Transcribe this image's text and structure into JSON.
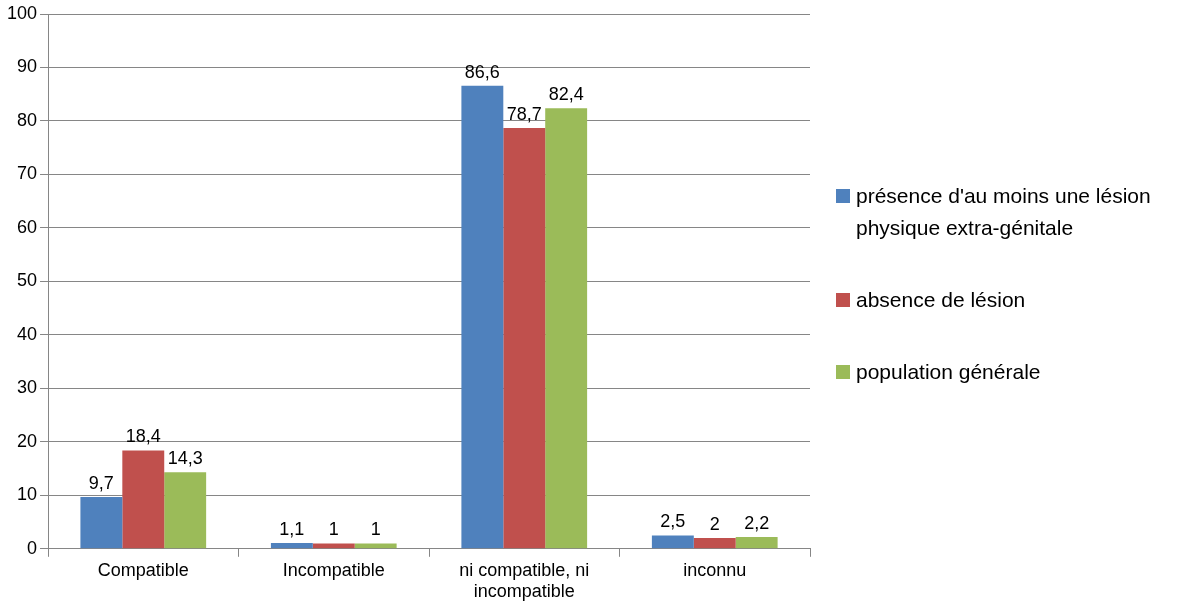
{
  "chart_data": {
    "type": "bar",
    "categories": [
      "Compatible",
      "Incompatible",
      "ni compatible, ni incompatible",
      "inconnu"
    ],
    "series": [
      {
        "name": "présence d'au moins une lésion physique extra-génitale",
        "color": "#4f81bd",
        "values": [
          9.7,
          1.1,
          86.6,
          2.5
        ],
        "value_labels": [
          "9,7",
          "1,1",
          "86,6",
          "2,5"
        ]
      },
      {
        "name": "absence de lésion",
        "color": "#c0504d",
        "values": [
          18.4,
          1,
          78.7,
          2
        ],
        "value_labels": [
          "18,4",
          "1",
          "78,7",
          "2"
        ]
      },
      {
        "name": "population générale",
        "color": "#9bbb59",
        "values": [
          14.3,
          1,
          82.4,
          2.2
        ],
        "value_labels": [
          "14,3",
          "1",
          "82,4",
          "2,2"
        ]
      }
    ],
    "ylim": [
      0,
      100
    ],
    "yticks": [
      0,
      10,
      20,
      30,
      40,
      50,
      60,
      70,
      80,
      90,
      100
    ],
    "grid": "y",
    "legend": "right"
  }
}
